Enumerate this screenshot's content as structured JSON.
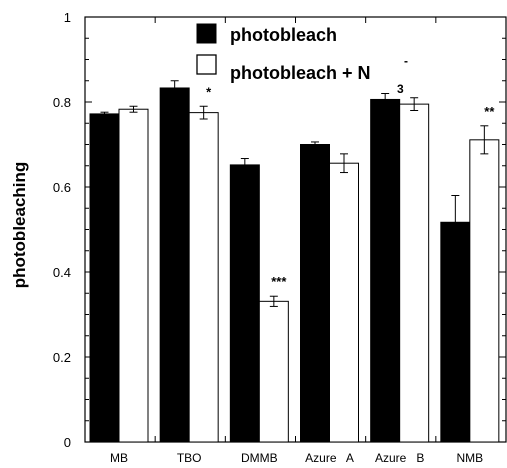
{
  "chart_data": {
    "type": "bar",
    "ylabel": "photobleaching",
    "xlabel": "",
    "ylim": [
      0,
      1
    ],
    "yticks": [
      "0",
      "0.2",
      "0.4",
      "0.6",
      "0.8",
      "1"
    ],
    "categories": [
      "MB",
      "TBO",
      "DMMB",
      "Azure   A",
      "Azure   B",
      "NMB"
    ],
    "series": [
      {
        "name": "photobleach",
        "color": "#000000",
        "values": [
          0.772,
          0.833,
          0.652,
          0.7,
          0.806,
          0.517
        ],
        "errors": [
          0.004,
          0.017,
          0.015,
          0.006,
          0.014,
          0.063
        ]
      },
      {
        "name": "photobleach + N3-",
        "color": "#ffffff",
        "values": [
          0.783,
          0.775,
          0.331,
          0.656,
          0.795,
          0.711
        ],
        "errors": [
          0.007,
          0.015,
          0.012,
          0.022,
          0.015,
          0.033
        ]
      }
    ],
    "legend": {
      "position": "top-center",
      "entries": [
        {
          "text": "photobleach"
        },
        {
          "text": "photobleach + N",
          "subscript": "3",
          "superscript": "-"
        }
      ]
    },
    "annotations": [
      {
        "category": "TBO",
        "series": 1,
        "text": "*"
      },
      {
        "category": "DMMB",
        "series": 1,
        "text": "***"
      },
      {
        "category": "NMB",
        "series": 1,
        "text": "**"
      }
    ],
    "grid": false
  }
}
